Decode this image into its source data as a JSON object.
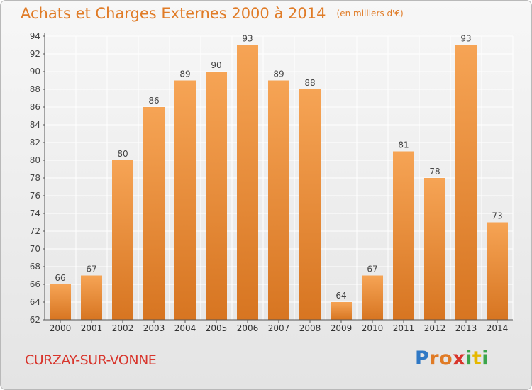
{
  "title": "Achats et Charges Externes 2000 à 2014",
  "unit_note": "(en milliers d'€)",
  "location": "CURZAY-SUR-VONNE",
  "logo": {
    "text": "Proxiti",
    "letters": [
      {
        "ch": "P",
        "color": "#2f78c5"
      },
      {
        "ch": "r",
        "color": "#e07b26"
      },
      {
        "ch": "o",
        "color": "#e07b26"
      },
      {
        "ch": "x",
        "color": "#d8352c"
      },
      {
        "ch": "i",
        "color": "#3aa54b"
      },
      {
        "ch": "t",
        "color": "#e6b800"
      },
      {
        "ch": "i",
        "color": "#3aa54b"
      }
    ]
  },
  "chart_data": {
    "type": "bar",
    "categories": [
      "2000",
      "2001",
      "2002",
      "2003",
      "2004",
      "2005",
      "2006",
      "2007",
      "2008",
      "2009",
      "2010",
      "2011",
      "2012",
      "2013",
      "2014"
    ],
    "values": [
      66,
      67,
      80,
      86,
      89,
      90,
      93,
      89,
      88,
      64,
      67,
      81,
      78,
      93,
      73
    ],
    "ylim": [
      62,
      94
    ],
    "yticks": [
      62,
      64,
      66,
      68,
      70,
      72,
      74,
      76,
      78,
      80,
      82,
      84,
      86,
      88,
      90,
      92,
      94
    ],
    "grid": true,
    "bar_color_light": "#f6a455",
    "bar_color_dark": "#d77521",
    "grid_color": "#ffffff"
  }
}
